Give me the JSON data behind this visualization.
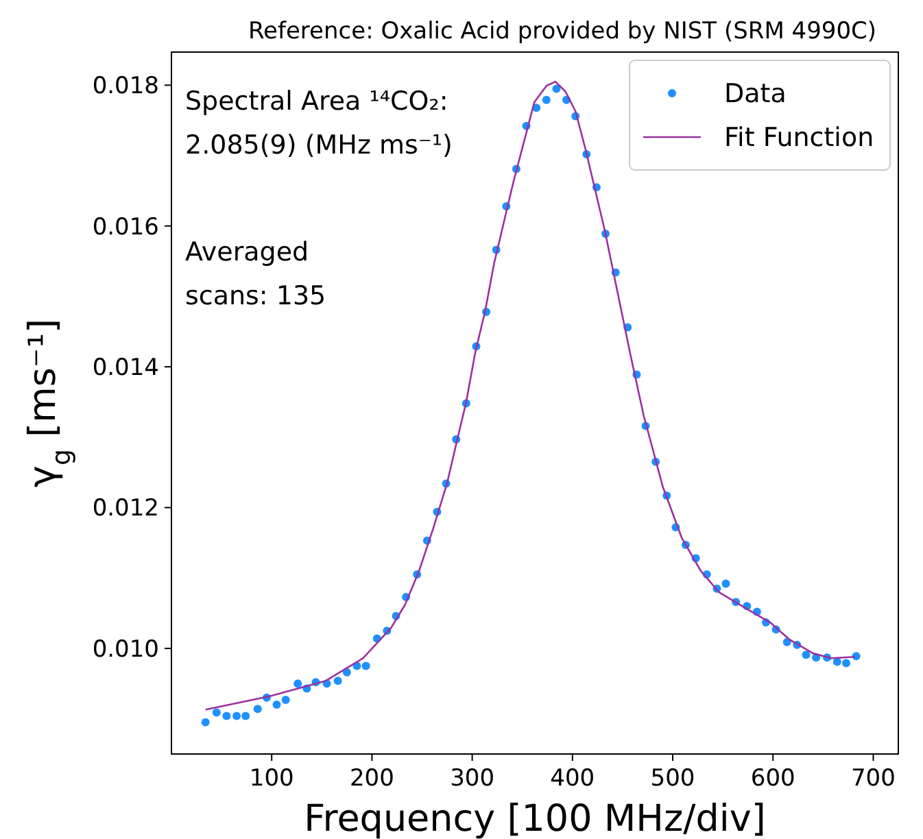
{
  "chart_data": {
    "type": "scatter",
    "title": "Reference: Oxalic Acid provided by NIST (SRM 4990C)",
    "xlabel": "Frequency [100 MHz/div]",
    "ylabel": "γ$_{g}$ [ms⁻¹]",
    "xlim": [
      0,
      725
    ],
    "xticks": [
      100,
      200,
      300,
      400,
      500,
      600,
      700
    ],
    "ylim": [
      0.0085,
      0.01847
    ],
    "yticks": [
      {
        "value": 0.01,
        "label": "0.010"
      },
      {
        "value": 0.012,
        "label": "0.012"
      },
      {
        "value": 0.014,
        "label": "0.014"
      },
      {
        "value": 0.016,
        "label": "0.016"
      },
      {
        "value": 0.018,
        "label": "0.018"
      }
    ],
    "grid": false,
    "legend": "top right",
    "marker": "circle",
    "annotations": [
      "Spectral Area ¹⁴CO₂:\n2.085(9) (MHz ms⁻¹)",
      "Averaged\nscans: 135"
    ],
    "series": [
      {
        "name": "Data",
        "color": "#1e90ff",
        "x": [
          34,
          45,
          55,
          65,
          74,
          86,
          95,
          105,
          114,
          126,
          135,
          144,
          155,
          166,
          175,
          185,
          194,
          205,
          215,
          224,
          234,
          245,
          255,
          265,
          274,
          284,
          294,
          304,
          314,
          324,
          334,
          344,
          354,
          364,
          374,
          384,
          394,
          403,
          414,
          424,
          433,
          443,
          455,
          464,
          473,
          483,
          494,
          503,
          513,
          523,
          534,
          544,
          553,
          563,
          574,
          584,
          593,
          603,
          614,
          624,
          633,
          643,
          654,
          664,
          673,
          683
        ],
        "values": [
          0.00895,
          0.00909,
          0.00904,
          0.00904,
          0.00904,
          0.00914,
          0.0093,
          0.0092,
          0.00927,
          0.0095,
          0.00943,
          0.00952,
          0.0095,
          0.00954,
          0.00966,
          0.00975,
          0.00975,
          0.01014,
          0.01025,
          0.01046,
          0.01073,
          0.01105,
          0.01153,
          0.01194,
          0.01234,
          0.01297,
          0.01348,
          0.01429,
          0.01478,
          0.01566,
          0.01628,
          0.01681,
          0.01742,
          0.01768,
          0.01779,
          0.01795,
          0.01779,
          0.01756,
          0.01702,
          0.01655,
          0.01589,
          0.01534,
          0.01456,
          0.01389,
          0.01316,
          0.01265,
          0.01217,
          0.01172,
          0.01147,
          0.01128,
          0.01105,
          0.01085,
          0.01092,
          0.01066,
          0.0106,
          0.01052,
          0.01037,
          0.01027,
          0.01009,
          0.01005,
          0.00991,
          0.00987,
          0.00987,
          0.00981,
          0.00979,
          0.00989
        ]
      },
      {
        "name": "Fit Function",
        "type": "line",
        "marker": "none",
        "line_style": "solid",
        "color": "#9b30a0",
        "x": [
          34,
          98,
          154,
          191,
          219,
          233,
          247,
          261,
          275,
          284,
          294,
          303,
          313,
          322,
          341,
          362,
          374,
          383,
          393,
          403,
          413,
          432,
          458,
          471,
          490,
          509,
          528,
          546,
          574,
          598,
          616,
          640,
          658,
          682
        ],
        "values": [
          0.00913,
          0.00932,
          0.00954,
          0.00986,
          0.01029,
          0.01062,
          0.0111,
          0.0117,
          0.01235,
          0.0129,
          0.0135,
          0.0142,
          0.0148,
          0.01548,
          0.01662,
          0.01776,
          0.01799,
          0.01805,
          0.01791,
          0.01763,
          0.01709,
          0.01595,
          0.01416,
          0.01331,
          0.0123,
          0.01157,
          0.0111,
          0.0108,
          0.01056,
          0.01036,
          0.01013,
          0.00993,
          0.00986,
          0.00988
        ]
      }
    ]
  }
}
